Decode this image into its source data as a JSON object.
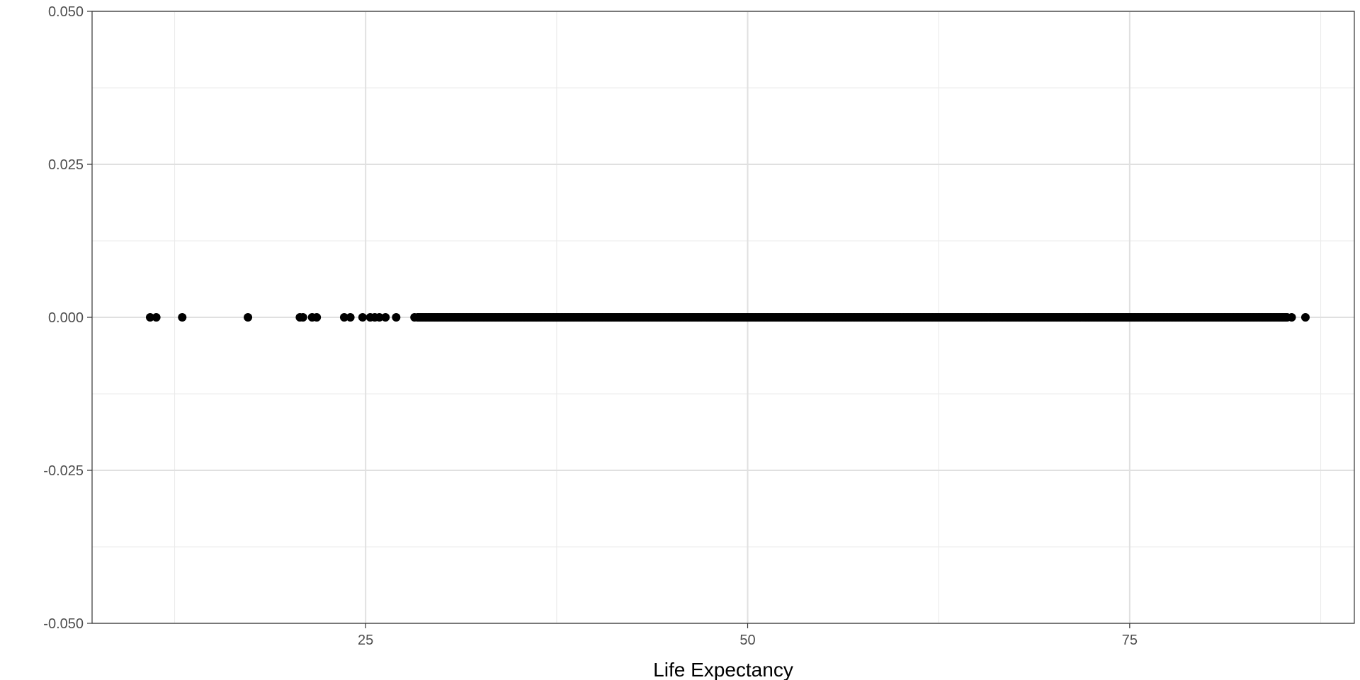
{
  "chart_data": {
    "type": "scatter",
    "title": "",
    "xlabel": "Life Expectancy",
    "ylabel": "",
    "xlim": [
      7.1,
      89.7
    ],
    "ylim": [
      -0.05,
      0.05
    ],
    "x_ticks": [
      25,
      50,
      75
    ],
    "x_tick_labels": [
      "25",
      "50",
      "75"
    ],
    "y_ticks": [
      -0.05,
      -0.025,
      0,
      0.025,
      0.05
    ],
    "y_tick_labels": [
      "-0.050",
      "-0.025",
      "0.000",
      "0.025",
      "0.050"
    ],
    "grid": true,
    "legend": "none",
    "point_color": "#000000",
    "y_value": 0,
    "x_sparse": [
      10.9,
      11.3,
      13.0,
      17.3,
      20.7,
      20.9,
      21.5,
      21.8,
      23.6,
      24.0,
      24.8,
      25.3,
      25.6,
      25.9,
      26.3,
      27.0,
      28.2,
      28.4
    ],
    "x_dense_range": [
      28.5,
      85.3
    ],
    "x_outer_points": [
      85.6,
      86.5
    ]
  }
}
